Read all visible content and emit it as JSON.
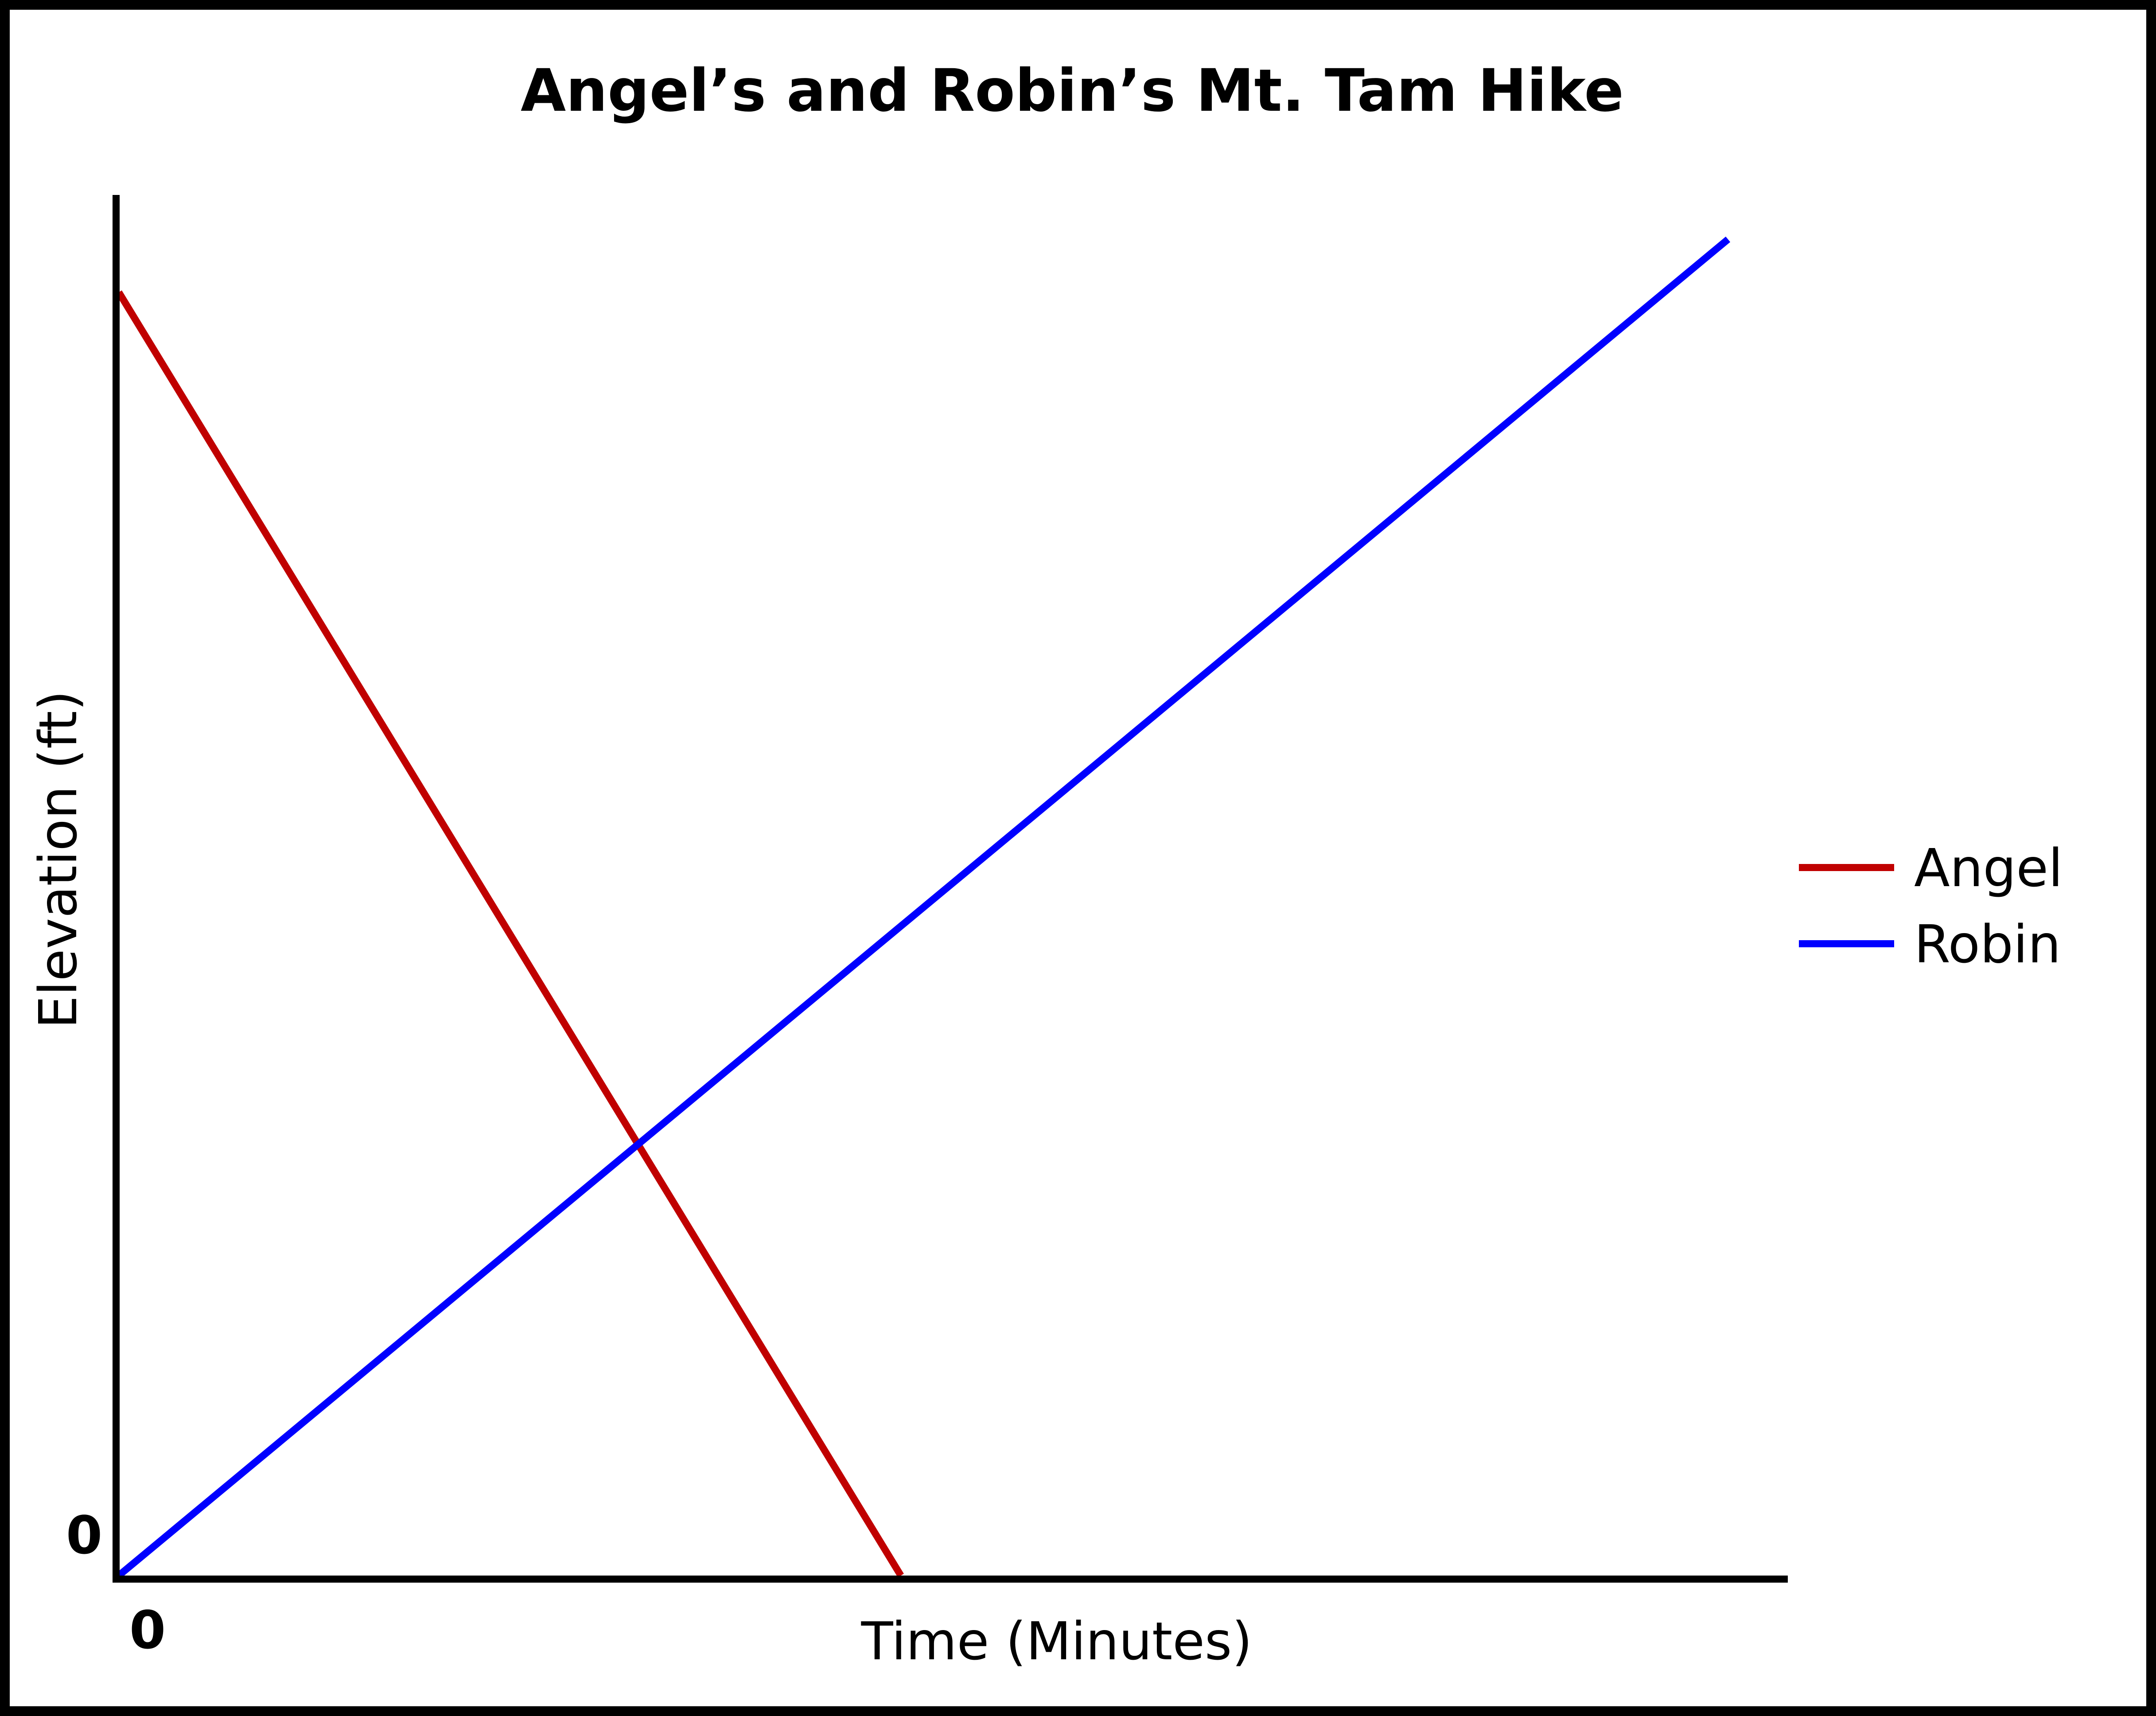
{
  "chart_data": {
    "type": "line",
    "title": "Angel’s and Robin’s Mt. Tam Hike",
    "xlabel": "Time (Minutes)",
    "ylabel": "Elevation (ft)",
    "x_tick_label": "0",
    "y_tick_label": "0",
    "xlim": [
      0,
      100
    ],
    "ylim": [
      0,
      100
    ],
    "grid": false,
    "legend_position": "right",
    "series": [
      {
        "name": "Angel",
        "color": "#c00000",
        "x": [
          0,
          48.6
        ],
        "y": [
          97,
          0
        ]
      },
      {
        "name": "Robin",
        "color": "#0000ff",
        "x": [
          0,
          100
        ],
        "y": [
          0,
          101
        ]
      }
    ]
  }
}
